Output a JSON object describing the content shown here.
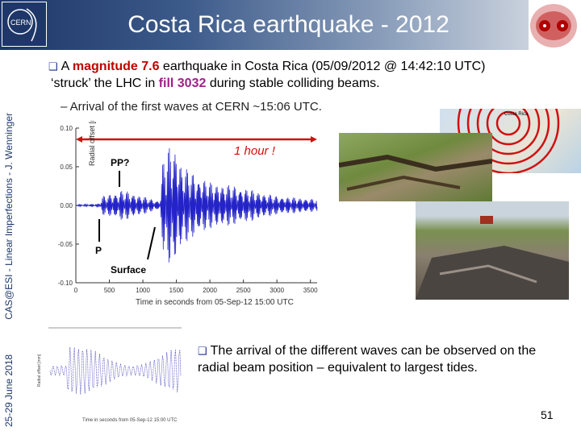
{
  "header": {
    "title": "Costa Rica earthquake - 2012",
    "logo_text": "CERN"
  },
  "sidebar_text": {
    "date": "25-29 June 2018",
    "event": "CAS@ESI - Linear Imperfections - J. Wenninger"
  },
  "bullet1": {
    "icon": "square-bullet-icon",
    "pre": "A ",
    "magnitude": "magnitude 7.6",
    "mid": " earthquake in Costa Rica (05/09/2012 @ 14:42:10 UTC)",
    "line2_pre": "‘struck’ the LHC in ",
    "fill": "fill 3032",
    "line2_post": " during stable colliding beams."
  },
  "sub_bullet": "–  Arrival of the first waves at CERN ~15:06 UTC.",
  "map": {
    "label": "Costa Rica"
  },
  "bullet2": {
    "icon": "square-bullet-icon",
    "text": "The arrival of the different waves can be observed on the radial beam position – equivalent to largest tides."
  },
  "page_number": "51",
  "colors": {
    "header_dark": "#1e3768",
    "highlight_red": "#c00000",
    "highlight_purple": "#a0208a",
    "trace": "#2323c8",
    "annotation_red": "#d01010"
  },
  "chart_data": [
    {
      "type": "line",
      "xlabel": "Time in seconds from 05-Sep-12 15:00 UTC",
      "ylabel": "Radial offset [mm]",
      "xlim": [
        0,
        3600
      ],
      "ylim": [
        -0.1,
        0.1
      ],
      "xticks": [
        "0",
        "500",
        "1000",
        "1500",
        "2000",
        "2500",
        "3000",
        "3500"
      ],
      "yticks": [
        "0.10",
        "0.05",
        "0.00",
        "-0.05",
        "-0.10"
      ],
      "envelope": {
        "x": [
          0,
          350,
          400,
          700,
          1250,
          1300,
          1450,
          1600,
          2000,
          2400,
          3000,
          3600
        ],
        "amplitude": [
          0.001,
          0.002,
          0.012,
          0.02,
          0.005,
          0.06,
          0.085,
          0.05,
          0.03,
          0.025,
          0.012,
          0.008
        ]
      },
      "annotations": [
        {
          "text": "P",
          "x": 370
        },
        {
          "text": "PP?",
          "x": 650
        },
        {
          "text": "Surface",
          "x": 1200
        },
        {
          "text": "1 hour !",
          "span": [
            0,
            3600
          ]
        }
      ]
    },
    {
      "type": "line",
      "ylabel": "Radial offset [mm]",
      "xlabel": "Time in seconds from 05-Sep-12 15:00 UTC"
    }
  ]
}
